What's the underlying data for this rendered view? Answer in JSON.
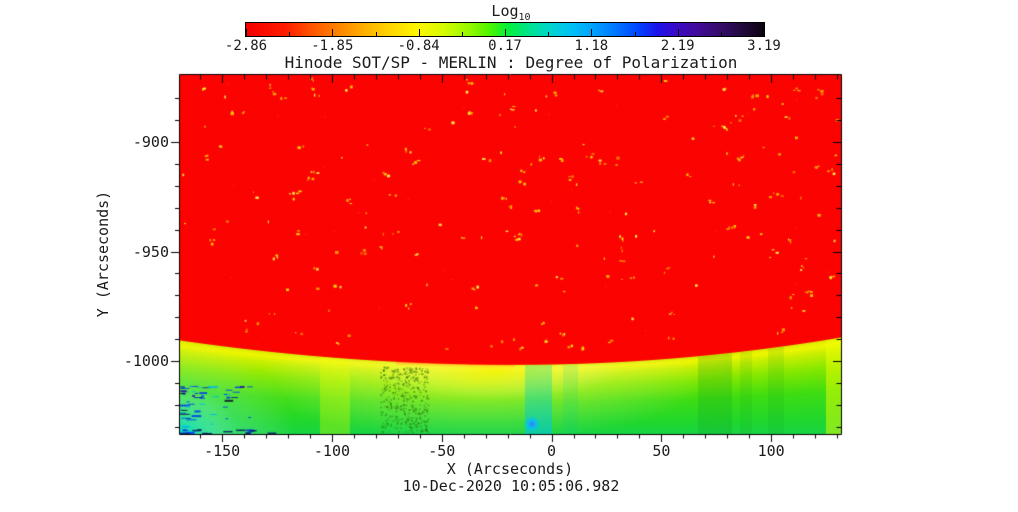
{
  "chart_data": {
    "type": "heatmap",
    "title": "Hinode SOT/SP - MERLIN : Degree of Polarization",
    "xlabel": "X (Arcseconds)",
    "ylabel": "Y (Arcseconds)",
    "timestamp": "10-Dec-2020 10:05:06.982",
    "xlim": [
      -169.2,
      131.8
    ],
    "ylim": [
      -1033.2,
      -869.5
    ],
    "x_tick_values": [
      -150,
      -100,
      -50,
      0,
      50,
      100
    ],
    "x_tick_labels": [
      "-150",
      "-100",
      "-50",
      "0",
      "50",
      "100"
    ],
    "y_tick_values": [
      -900,
      -950,
      -1000
    ],
    "y_tick_labels": [
      "-900",
      "-950",
      "-1000"
    ],
    "minor_tick_step_arcsec": 10,
    "grid": false,
    "colorbar": {
      "title_main": "Log",
      "title_sub": "10",
      "scale": "log10 degree of polarization",
      "tick_values": [
        -2.86,
        -1.85,
        -0.84,
        0.17,
        1.18,
        2.19,
        3.19
      ],
      "tick_labels": [
        "-2.86",
        "-1.85",
        "-0.84",
        "0.17",
        "1.18",
        "2.19",
        "3.19"
      ],
      "gradient": [
        [
          0.0,
          "#f50000"
        ],
        [
          0.075,
          "#fd1c00"
        ],
        [
          0.125,
          "#ff5200"
        ],
        [
          0.168,
          "#ff7b00"
        ],
        [
          0.22,
          "#ffa800"
        ],
        [
          0.27,
          "#ffd000"
        ],
        [
          0.33,
          "#fef600"
        ],
        [
          0.38,
          "#d8fb00"
        ],
        [
          0.43,
          "#97f800"
        ],
        [
          0.47,
          "#4ef500"
        ],
        [
          0.505,
          "#06ef37"
        ],
        [
          0.545,
          "#00e48c"
        ],
        [
          0.585,
          "#00d6c9"
        ],
        [
          0.625,
          "#00c2f4"
        ],
        [
          0.665,
          "#00a6fb"
        ],
        [
          0.71,
          "#007bff"
        ],
        [
          0.755,
          "#0046ff"
        ],
        [
          0.795,
          "#1c13ea"
        ],
        [
          0.835,
          "#3c0ac2"
        ],
        [
          0.875,
          "#400b95"
        ],
        [
          0.915,
          "#340c6a"
        ],
        [
          0.955,
          "#230a41"
        ],
        [
          1.0,
          "#0d030f"
        ]
      ]
    },
    "image_content": {
      "description": "Solar disk (uniform red, low log10 polarization near -2.86) with sparse yellow-orange bright speckles; curved solar limb near y=-1000 below which lies a yellow-to-green off-limb band with vertical streaks, a cyan patch and blue noise dashes in the lower-left corner",
      "disk_color": "#fb0300",
      "limb_curve_points": {
        "x": [
          -169.2,
          -16.6,
          131.8
        ],
        "y": [
          -990.8,
          -1001.9,
          -989.4
        ]
      },
      "offlimb_gradient": [
        [
          0.0,
          "#dcec00"
        ],
        [
          0.05,
          "#eff600"
        ],
        [
          0.13,
          "#c6ef00"
        ],
        [
          0.3,
          "#84e800"
        ],
        [
          0.55,
          "#3edd12"
        ],
        [
          0.85,
          "#20d72e"
        ],
        [
          1.0,
          "#1ad445"
        ]
      ],
      "limb_rim_orange": "#ff9e00",
      "speckle_colors": [
        "#ff9500",
        "#ffc000",
        "#ffea00",
        "#ffff55"
      ],
      "corner_cyan": "#00e8d2",
      "noise_dash_colors": [
        "#0038f0",
        "#0020b8",
        "#04106e",
        "#00b8e8",
        "#0a0a28",
        "#2200a0"
      ],
      "seed": 20201210
    }
  }
}
